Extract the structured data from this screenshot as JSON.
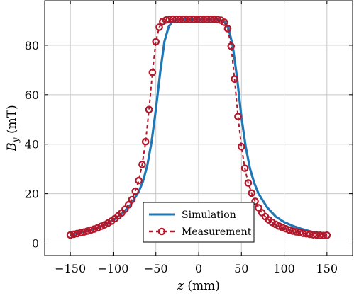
{
  "chart_data": {
    "type": "line",
    "xlabel": "z (mm)",
    "ylabel": "B_y (mT)",
    "xlim": [
      -180,
      180
    ],
    "ylim": [
      -5,
      98
    ],
    "xticks": [
      -150,
      -100,
      -50,
      0,
      50,
      100,
      150
    ],
    "xtick_labels": [
      "−150",
      "−100",
      "−50",
      "0",
      "50",
      "100",
      "150"
    ],
    "yticks": [
      0,
      20,
      40,
      60,
      80
    ],
    "ytick_labels": [
      "0",
      "20",
      "40",
      "60",
      "80"
    ],
    "grid": true,
    "legend_position": "bottom-center",
    "colors": {
      "simulation": "#1f77b4",
      "measurement": "#b2182b"
    },
    "series": [
      {
        "name": "Simulation",
        "style": "solid",
        "x": [
          -150,
          -140,
          -130,
          -120,
          -110,
          -100,
          -90,
          -80,
          -70,
          -65,
          -60,
          -55,
          -50,
          -45,
          -40,
          -35,
          -30,
          -25,
          -20,
          -10,
          0,
          10,
          20,
          25,
          30,
          35,
          40,
          45,
          50,
          55,
          60,
          65,
          70,
          80,
          90,
          100,
          110,
          120,
          130,
          140,
          150
        ],
        "y": [
          3.3,
          4.2,
          5.0,
          6.0,
          7.3,
          9.2,
          11.8,
          15.3,
          20.8,
          25.0,
          31.5,
          41.0,
          54.0,
          69.0,
          81.5,
          87.5,
          89.8,
          90.3,
          90.5,
          90.5,
          90.5,
          90.5,
          90.5,
          90.2,
          89.6,
          86.8,
          79.5,
          66.5,
          51.0,
          39.0,
          30.2,
          24.3,
          20.0,
          14.5,
          10.8,
          8.5,
          7.0,
          5.8,
          4.8,
          4.0,
          3.3
        ]
      },
      {
        "name": "Measurement",
        "style": "dashed-circle",
        "x": [
          -150,
          -146,
          -142,
          -138,
          -134,
          -130,
          -126,
          -122,
          -118,
          -114,
          -110,
          -106,
          -102,
          -98,
          -94,
          -90,
          -86,
          -82,
          -78,
          -74,
          -70,
          -66,
          -62,
          -58,
          -54,
          -50,
          -46,
          -42,
          -38,
          -34,
          -30,
          -26,
          -22,
          -18,
          -14,
          -10,
          -6,
          -2,
          2,
          6,
          10,
          14,
          18,
          22,
          26,
          30,
          34,
          38,
          42,
          46,
          50,
          54,
          58,
          62,
          66,
          70,
          74,
          78,
          82,
          86,
          90,
          94,
          98,
          102,
          106,
          110,
          114,
          118,
          122,
          126,
          130,
          134,
          138,
          142,
          146,
          150
        ],
        "y": [
          3.3,
          3.6,
          3.9,
          4.2,
          4.5,
          4.9,
          5.3,
          5.7,
          6.2,
          6.8,
          7.4,
          8.1,
          8.9,
          9.9,
          11.0,
          12.2,
          13.7,
          15.5,
          17.6,
          21.0,
          25.3,
          31.8,
          41.0,
          54.0,
          69.0,
          81.4,
          87.3,
          89.6,
          90.2,
          90.4,
          90.5,
          90.5,
          90.5,
          90.5,
          90.5,
          90.5,
          90.5,
          90.5,
          90.5,
          90.5,
          90.5,
          90.5,
          90.5,
          90.4,
          90.1,
          89.3,
          86.7,
          79.6,
          66.3,
          51.2,
          39.0,
          30.3,
          24.3,
          20.2,
          16.9,
          14.3,
          12.3,
          10.7,
          9.4,
          8.4,
          7.6,
          6.9,
          6.3,
          5.8,
          5.3,
          4.9,
          4.6,
          4.3,
          4.0,
          3.8,
          3.6,
          3.4,
          3.3,
          3.2,
          3.1,
          3.2
        ]
      }
    ]
  }
}
